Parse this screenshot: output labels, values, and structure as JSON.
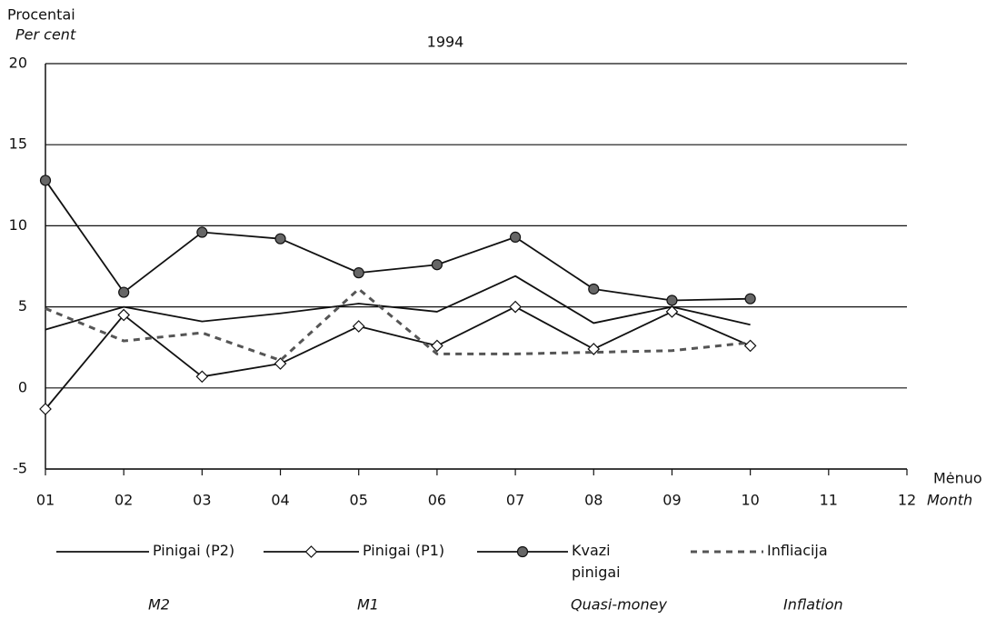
{
  "chart_data": {
    "type": "line",
    "title": "1994",
    "y_label": "Procentai",
    "y_label_en": "Per cent",
    "x_label": "Mėnuo",
    "x_label_en": "Month",
    "categories": [
      "01",
      "02",
      "03",
      "04",
      "05",
      "06",
      "07",
      "08",
      "09",
      "10",
      "11",
      "12"
    ],
    "ylim": [
      -5,
      20
    ],
    "yticks": [
      -5,
      0,
      5,
      10,
      15,
      20
    ],
    "grid": true,
    "series": [
      {
        "name": "Pinigai (P2)",
        "subname": "M2",
        "color": "#111111",
        "style": "line",
        "values": [
          3.6,
          5.0,
          4.1,
          4.6,
          5.2,
          4.7,
          6.9,
          4.0,
          5.0,
          3.9,
          null,
          null
        ]
      },
      {
        "name": "Pinigai (P1)",
        "subname": "M1",
        "color": "#111111",
        "style": "diamond",
        "values": [
          -1.3,
          4.5,
          0.7,
          1.5,
          3.8,
          2.6,
          5.0,
          2.4,
          4.7,
          2.6,
          null,
          null
        ]
      },
      {
        "name": "Kvazi pinigai",
        "subname": "Quasi-money",
        "color": "#111111",
        "style": "circle",
        "values": [
          12.8,
          5.9,
          9.6,
          9.2,
          7.1,
          7.6,
          9.3,
          6.1,
          5.4,
          5.5,
          null,
          null
        ]
      },
      {
        "name": "Infliacija",
        "subname": "Inflation",
        "color": "#555555",
        "style": "dashed",
        "values": [
          4.9,
          2.9,
          3.4,
          1.7,
          6.1,
          2.1,
          2.1,
          2.2,
          2.3,
          2.8,
          null,
          null
        ]
      }
    ]
  }
}
